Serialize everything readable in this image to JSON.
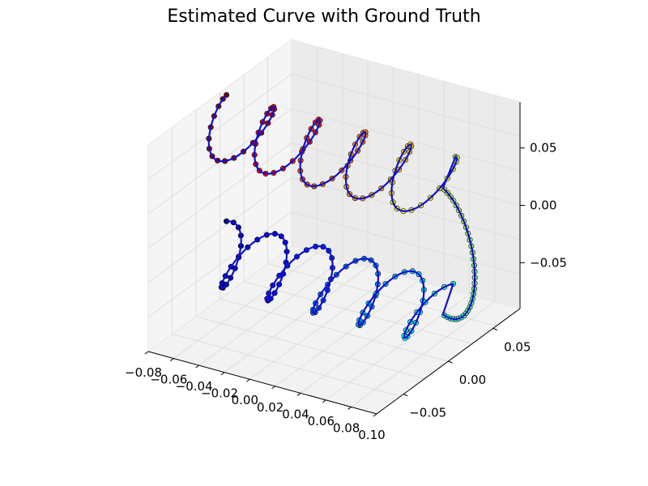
{
  "chart_data": {
    "type": "scatter",
    "projection": "3d",
    "title": "Estimated Curve with Ground Truth",
    "x_ticks": [
      "−0.08",
      "−0.06",
      "−0.04",
      "−0.02",
      "0.00",
      "0.02",
      "0.04",
      "0.06",
      "0.08",
      "0.10"
    ],
    "y_ticks": [
      "−0.05",
      "0.00",
      "0.05"
    ],
    "z_ticks": [
      "−0.05",
      "0.00",
      "0.05"
    ],
    "xlim": [
      -0.08,
      0.1
    ],
    "ylim": [
      -0.08,
      0.08
    ],
    "zlim": [
      -0.09,
      0.09
    ],
    "grid": true,
    "colormap": "jet",
    "series": [
      {
        "kind": "scatter",
        "color_by": "parameter",
        "marker": "o",
        "edgecolor": "#000000"
      },
      {
        "kind": "line",
        "color": "#1010cc"
      }
    ],
    "curve": {
      "shape": "two-helix loop",
      "turns_per_arm": 5,
      "arm_length_x": 0.2,
      "helix_radius": 0.012,
      "arm_z_separation": 0.11
    }
  }
}
